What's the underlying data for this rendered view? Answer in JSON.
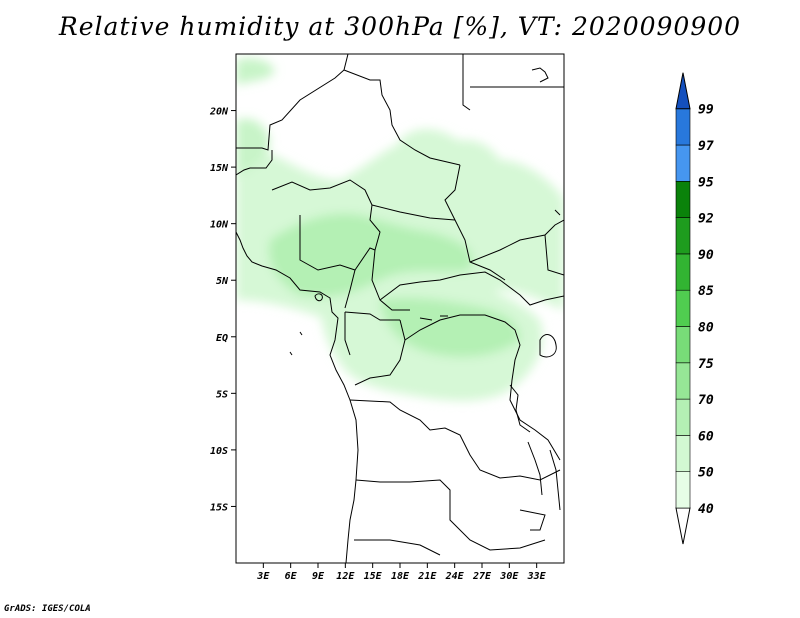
{
  "title": "Relative humidity at 300hPa [%], VT: 2020090900",
  "credit": "GrADS: IGES/COLA",
  "map": {
    "lon_range": [
      0,
      36
    ],
    "lat_range": [
      -20,
      25
    ],
    "lat_ticks": [
      {
        "value": 20,
        "label": "20N"
      },
      {
        "value": 15,
        "label": "15N"
      },
      {
        "value": 10,
        "label": "10N"
      },
      {
        "value": 5,
        "label": "5N"
      },
      {
        "value": 0,
        "label": "EQ"
      },
      {
        "value": -5,
        "label": "5S"
      },
      {
        "value": -10,
        "label": "10S"
      },
      {
        "value": -15,
        "label": "15S"
      }
    ],
    "lon_ticks": [
      {
        "value": 3,
        "label": "3E"
      },
      {
        "value": 6,
        "label": "6E"
      },
      {
        "value": 9,
        "label": "9E"
      },
      {
        "value": 12,
        "label": "12E"
      },
      {
        "value": 15,
        "label": "15E"
      },
      {
        "value": 18,
        "label": "18E"
      },
      {
        "value": 21,
        "label": "21E"
      },
      {
        "value": 24,
        "label": "24E"
      },
      {
        "value": 27,
        "label": "27E"
      },
      {
        "value": 30,
        "label": "30E"
      },
      {
        "value": 33,
        "label": "33E"
      }
    ]
  },
  "colorbar": {
    "levels": [
      "40",
      "50",
      "60",
      "70",
      "75",
      "80",
      "85",
      "90",
      "92",
      "95",
      "97",
      "99"
    ],
    "colors": [
      "#ffffff",
      "#e6fde6",
      "#d2f8d2",
      "#b4f0b4",
      "#96e696",
      "#78dc78",
      "#50cd50",
      "#32b432",
      "#1e9c1e",
      "#0a820a",
      "#4696f0",
      "#2878dc",
      "#1450be"
    ]
  }
}
